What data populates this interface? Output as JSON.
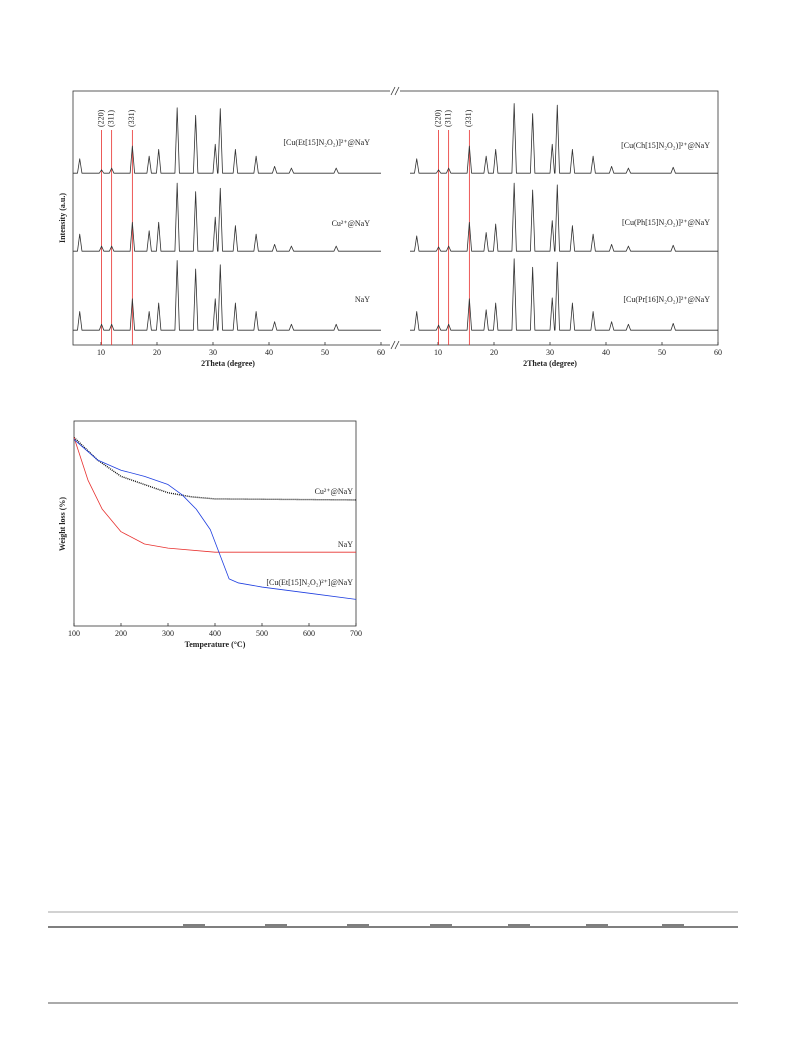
{
  "chart_data": [
    {
      "type": "line",
      "xlabel": "2Theta (degree)",
      "ylabel": "Intensity (a.u.)",
      "xlim": [
        5,
        60
      ],
      "xticks": [
        10,
        20,
        30,
        40,
        50,
        60
      ],
      "ylim": [
        0,
        100
      ],
      "ref_lines": [
        {
          "x": 10.1,
          "label": "(220)"
        },
        {
          "x": 11.9,
          "label": "(311)"
        },
        {
          "x": 15.6,
          "label": "(331)"
        }
      ],
      "x": [
        5,
        5.8,
        6.2,
        6.6,
        9.7,
        10.1,
        10.5,
        11.5,
        11.9,
        12.3,
        15.2,
        15.6,
        16.0,
        18.2,
        18.6,
        19.0,
        19.9,
        20.3,
        20.7,
        23.2,
        23.6,
        24.0,
        26.5,
        26.9,
        27.3,
        30.0,
        30.4,
        30.8,
        30.9,
        31.3,
        31.7,
        33.6,
        34.0,
        34.4,
        37.3,
        37.7,
        38.1,
        40.6,
        41.0,
        41.4,
        43.6,
        44.0,
        44.4,
        51.6,
        52.0,
        52.4,
        60
      ],
      "series": [
        {
          "name": "[Cu(Et[15]N₂O₂)]²⁺@NaY",
          "color": "#333333",
          "values": [
            8,
            8,
            25,
            8,
            8,
            12,
            8,
            8,
            14,
            8,
            8,
            40,
            8,
            8,
            28,
            8,
            8,
            36,
            8,
            8,
            85,
            8,
            8,
            76,
            8,
            8,
            42,
            8,
            8,
            84,
            8,
            8,
            36,
            8,
            8,
            28,
            8,
            8,
            16,
            8,
            8,
            14,
            8,
            8,
            14,
            8,
            8
          ]
        },
        {
          "name": "Cu²⁺@NaY",
          "color": "#333333",
          "values": [
            8,
            8,
            28,
            8,
            8,
            14,
            8,
            8,
            14,
            8,
            8,
            42,
            8,
            8,
            32,
            8,
            8,
            42,
            8,
            8,
            88,
            8,
            8,
            78,
            8,
            8,
            48,
            8,
            8,
            82,
            8,
            8,
            38,
            8,
            8,
            28,
            8,
            8,
            16,
            8,
            8,
            14,
            8,
            8,
            14,
            8,
            8
          ]
        },
        {
          "name": "NaY",
          "color": "#333333",
          "values": [
            8,
            8,
            30,
            8,
            8,
            15,
            8,
            8,
            15,
            8,
            8,
            45,
            8,
            8,
            30,
            8,
            8,
            40,
            8,
            8,
            90,
            8,
            8,
            80,
            8,
            8,
            45,
            8,
            8,
            85,
            8,
            8,
            40,
            8,
            8,
            30,
            8,
            8,
            18,
            8,
            8,
            15,
            8,
            8,
            15,
            8,
            8
          ]
        }
      ]
    },
    {
      "type": "line",
      "xlabel": "2Theta (degree)",
      "xlim": [
        5,
        60
      ],
      "xticks": [
        10,
        20,
        30,
        40,
        50,
        60
      ],
      "ylim": [
        0,
        100
      ],
      "ref_lines": [
        {
          "x": 10.1,
          "label": "(220)"
        },
        {
          "x": 11.9,
          "label": "(311)"
        },
        {
          "x": 15.6,
          "label": "(331)"
        }
      ],
      "x": [
        5,
        5.8,
        6.2,
        6.6,
        9.7,
        10.1,
        10.5,
        11.5,
        11.9,
        12.3,
        15.2,
        15.6,
        16.0,
        18.2,
        18.6,
        19.0,
        19.9,
        20.3,
        20.7,
        23.2,
        23.6,
        24.0,
        26.5,
        26.9,
        27.3,
        30.0,
        30.4,
        30.8,
        30.9,
        31.3,
        31.7,
        33.6,
        34.0,
        34.4,
        37.3,
        37.7,
        38.1,
        40.6,
        41.0,
        41.4,
        43.6,
        44.0,
        44.4,
        51.6,
        52.0,
        52.4,
        60
      ],
      "series": [
        {
          "name": "[Cu(Ch[15]N₂O₂)]²⁺@NaY",
          "color": "#333333",
          "values": [
            8,
            8,
            25,
            8,
            8,
            12,
            8,
            8,
            14,
            8,
            8,
            40,
            8,
            8,
            28,
            8,
            8,
            36,
            8,
            8,
            90,
            8,
            8,
            78,
            8,
            8,
            42,
            8,
            8,
            88,
            8,
            8,
            36,
            8,
            8,
            28,
            8,
            8,
            16,
            8,
            8,
            14,
            8,
            8,
            15,
            8,
            8
          ]
        },
        {
          "name": "[Cu(Ph[15]N₂O₂)]²⁺@NaY",
          "color": "#333333",
          "values": [
            8,
            8,
            26,
            8,
            8,
            13,
            8,
            8,
            14,
            8,
            8,
            42,
            8,
            8,
            30,
            8,
            8,
            40,
            8,
            8,
            88,
            8,
            8,
            80,
            8,
            8,
            44,
            8,
            8,
            86,
            8,
            8,
            38,
            8,
            8,
            28,
            8,
            8,
            16,
            8,
            8,
            14,
            8,
            8,
            15,
            8,
            8
          ]
        },
        {
          "name": "[Cu(Pr[16]N₂O₂)]²⁺@NaY",
          "color": "#333333",
          "values": [
            8,
            8,
            30,
            8,
            8,
            14,
            8,
            8,
            15,
            8,
            8,
            45,
            8,
            8,
            32,
            8,
            8,
            40,
            8,
            8,
            92,
            8,
            8,
            82,
            8,
            8,
            46,
            8,
            8,
            88,
            8,
            8,
            40,
            8,
            8,
            30,
            8,
            8,
            18,
            8,
            8,
            15,
            8,
            8,
            16,
            8,
            8
          ]
        }
      ]
    },
    {
      "type": "line",
      "xlabel": "Temperature (°C)",
      "ylabel": "Weight loss (%)",
      "xlim": [
        100,
        700
      ],
      "xticks": [
        100,
        200,
        300,
        400,
        500,
        600,
        700
      ],
      "ylim": [
        0,
        100
      ],
      "series": [
        {
          "name": "Cu²⁺@NaY",
          "color": "#111111",
          "style": "dotted",
          "x": [
            100,
            150,
            200,
            250,
            300,
            350,
            400,
            700
          ],
          "values": [
            92,
            81,
            73,
            69,
            65,
            63,
            62,
            61.5
          ]
        },
        {
          "name": "NaY",
          "color": "#e8312f",
          "x": [
            100,
            130,
            160,
            200,
            250,
            300,
            400,
            700
          ],
          "values": [
            92,
            71,
            57,
            46,
            40,
            38,
            36,
            36
          ]
        },
        {
          "name": "[Cu(Et[15]N₂O₂)²⁺]@NaY",
          "color": "#1f3fe0",
          "x": [
            100,
            150,
            200,
            250,
            300,
            330,
            360,
            390,
            410,
            430,
            450,
            500,
            600,
            700
          ],
          "values": [
            91,
            81,
            76,
            73,
            69,
            64,
            57,
            47,
            35,
            23,
            21,
            19,
            16,
            13
          ]
        }
      ]
    }
  ]
}
